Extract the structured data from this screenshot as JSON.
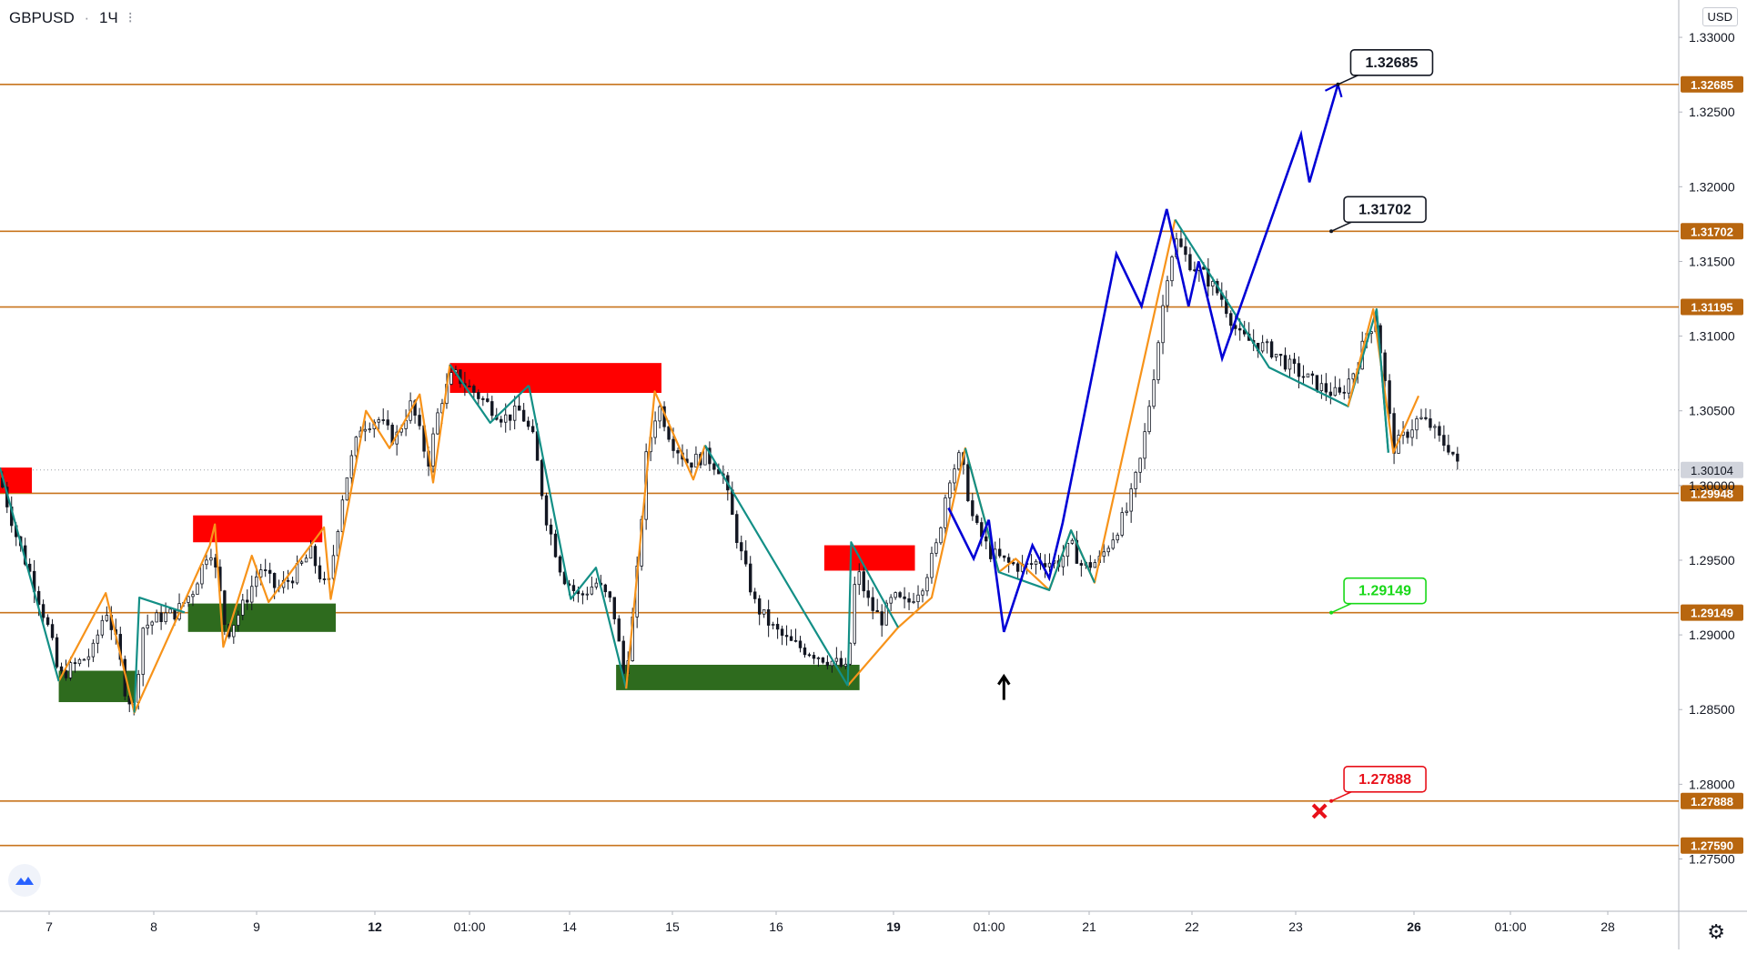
{
  "header": {
    "symbol": "GBPUSD",
    "interval": "1Ч",
    "currency": "USD"
  },
  "colors": {
    "up": "#131722",
    "down": "#131722",
    "level_line": "#c8741d",
    "level_tag": "#b8660f",
    "zig_orange": "#f7931a",
    "zig_teal": "#138f86",
    "projection": "#0000d6",
    "supply": "#ff0000",
    "demand": "#2e6b1e",
    "callout_green": "#18d818",
    "callout_red": "#e8101a",
    "current_price_tag": "#d1d4dc"
  },
  "icons": {
    "logo": "tradingview-cloud-icon",
    "settings": "gear-icon",
    "marker_up": "arrow-up-icon",
    "marker_stop": "cross-icon"
  },
  "chart_data": {
    "type": "candlestick",
    "symbol": "GBPUSD",
    "interval": "1Ч",
    "xlabel": "",
    "ylabel": "",
    "ylim": [
      1.2715,
      1.3325
    ],
    "y_ticks": [
      "1.27500",
      "1.28000",
      "1.28500",
      "1.29000",
      "1.29500",
      "1.30000",
      "1.30500",
      "1.31000",
      "1.31500",
      "1.32000",
      "1.32500",
      "1.33000"
    ],
    "x_ticks": [
      "7",
      "8",
      "9",
      "12",
      "01:00",
      "14",
      "15",
      "16",
      "19",
      "01:00",
      "21",
      "22",
      "23",
      "26",
      "01:00",
      "28"
    ],
    "current_price": "1.30104",
    "levels": [
      {
        "label": "1.32685",
        "value": 1.32685
      },
      {
        "label": "1.31702",
        "value": 1.31702
      },
      {
        "label": "1.31195",
        "value": 1.31195
      },
      {
        "label": "1.29948",
        "value": 1.29948
      },
      {
        "label": "1.29149",
        "value": 1.29149
      },
      {
        "label": "1.27888",
        "value": 1.27888
      },
      {
        "label": "1.27590",
        "value": 1.2759
      }
    ],
    "callouts": [
      {
        "label": "1.32685",
        "style": "black",
        "value": 1.32685,
        "t": 0.797
      },
      {
        "label": "1.31702",
        "style": "black",
        "value": 1.31702,
        "t": 0.793
      },
      {
        "label": "1.29149",
        "style": "green",
        "value": 1.29149,
        "t": 0.793
      },
      {
        "label": "1.27888",
        "style": "red",
        "value": 1.27888,
        "t": 0.793
      }
    ],
    "zones": [
      {
        "type": "supply",
        "t0": 0.0,
        "t1": 0.019,
        "top": 1.3012,
        "bottom": 1.2995
      },
      {
        "type": "supply",
        "t0": 0.115,
        "t1": 0.192,
        "top": 1.298,
        "bottom": 1.2962
      },
      {
        "type": "supply",
        "t0": 0.268,
        "t1": 0.394,
        "top": 1.3082,
        "bottom": 1.3062
      },
      {
        "type": "supply",
        "t0": 0.491,
        "t1": 0.545,
        "top": 1.296,
        "bottom": 1.2943
      },
      {
        "type": "demand",
        "t0": 0.035,
        "t1": 0.081,
        "top": 1.2876,
        "bottom": 1.2855
      },
      {
        "type": "demand",
        "t0": 0.112,
        "t1": 0.2,
        "top": 1.2921,
        "bottom": 1.2902
      },
      {
        "type": "demand",
        "t0": 0.367,
        "t1": 0.512,
        "top": 1.288,
        "bottom": 1.2863
      }
    ],
    "projection_path": [
      [
        0.565,
        1.2985
      ],
      [
        0.58,
        1.2951
      ],
      [
        0.589,
        1.2977
      ],
      [
        0.598,
        1.2902
      ],
      [
        0.615,
        1.296
      ],
      [
        0.625,
        1.2938
      ],
      [
        0.633,
        1.2975
      ],
      [
        0.665,
        1.3155
      ],
      [
        0.68,
        1.312
      ],
      [
        0.695,
        1.3185
      ],
      [
        0.708,
        1.312
      ],
      [
        0.714,
        1.315
      ],
      [
        0.728,
        1.3085
      ],
      [
        0.775,
        1.3235
      ],
      [
        0.78,
        1.3203
      ],
      [
        0.797,
        1.32685
      ]
    ],
    "zigzag": [
      {
        "color": "orange",
        "points": [
          [
            0.035,
            1.2869
          ],
          [
            0.063,
            1.2928
          ],
          [
            0.08,
            1.2848
          ],
          [
            0.125,
            1.296
          ],
          [
            0.128,
            1.2974
          ],
          [
            0.133,
            1.2892
          ],
          [
            0.15,
            1.2953
          ],
          [
            0.16,
            1.2922
          ],
          [
            0.193,
            1.2972
          ],
          [
            0.197,
            1.2924
          ],
          [
            0.218,
            1.305
          ],
          [
            0.232,
            1.3025
          ],
          [
            0.25,
            1.3061
          ],
          [
            0.258,
            1.3002
          ],
          [
            0.268,
            1.3081
          ]
        ]
      },
      {
        "color": "teal",
        "points": [
          [
            0.0,
            1.3012
          ],
          [
            0.035,
            1.2869
          ]
        ]
      },
      {
        "color": "teal",
        "points": [
          [
            0.08,
            1.2848
          ],
          [
            0.083,
            1.2925
          ],
          [
            0.11,
            1.2915
          ]
        ]
      },
      {
        "color": "teal",
        "points": [
          [
            0.268,
            1.3081
          ],
          [
            0.292,
            1.3042
          ],
          [
            0.315,
            1.3067
          ]
        ]
      },
      {
        "color": "teal",
        "points": [
          [
            0.315,
            1.3067
          ],
          [
            0.34,
            1.2924
          ],
          [
            0.355,
            1.2945
          ],
          [
            0.373,
            1.2864
          ]
        ]
      },
      {
        "color": "orange",
        "points": [
          [
            0.373,
            1.2864
          ],
          [
            0.39,
            1.3063
          ],
          [
            0.413,
            1.3004
          ],
          [
            0.42,
            1.3027
          ]
        ]
      },
      {
        "color": "teal",
        "points": [
          [
            0.42,
            1.3027
          ],
          [
            0.505,
            1.2866
          ]
        ]
      },
      {
        "color": "orange",
        "points": [
          [
            0.505,
            1.2866
          ],
          [
            0.535,
            1.2905
          ],
          [
            0.555,
            1.2925
          ],
          [
            0.575,
            1.3025
          ],
          [
            0.595,
            1.2942
          ],
          [
            0.605,
            1.2951
          ],
          [
            0.625,
            1.293
          ],
          [
            0.638,
            1.297
          ],
          [
            0.652,
            1.2935
          ],
          [
            0.7,
            1.3178
          ]
        ]
      },
      {
        "color": "teal",
        "points": [
          [
            0.505,
            1.2866
          ],
          [
            0.507,
            1.2962
          ],
          [
            0.535,
            1.2905
          ]
        ]
      },
      {
        "color": "teal",
        "points": [
          [
            0.575,
            1.3025
          ],
          [
            0.595,
            1.2942
          ],
          [
            0.625,
            1.293
          ],
          [
            0.638,
            1.297
          ],
          [
            0.652,
            1.2935
          ]
        ]
      },
      {
        "color": "teal",
        "points": [
          [
            0.7,
            1.3178
          ],
          [
            0.756,
            1.3079
          ],
          [
            0.803,
            1.3053
          ],
          [
            0.82,
            1.3118
          ],
          [
            0.827,
            1.3022
          ]
        ]
      },
      {
        "color": "orange",
        "points": [
          [
            0.803,
            1.3053
          ],
          [
            0.818,
            1.3118
          ],
          [
            0.83,
            1.3022
          ],
          [
            0.845,
            1.306
          ]
        ]
      },
      {
        "color": "teal",
        "points": [
          [
            0.82,
            1.3118
          ],
          [
            0.827,
            1.3022
          ]
        ]
      }
    ],
    "markers": [
      {
        "type": "arrow-up",
        "t": 0.598,
        "value": 1.2865
      },
      {
        "type": "cross",
        "t": 0.786,
        "value": 1.2782
      }
    ],
    "price_path": [
      [
        0.0,
        1.3005
      ],
      [
        0.01,
        1.2965
      ],
      [
        0.02,
        1.2935
      ],
      [
        0.03,
        1.29
      ],
      [
        0.035,
        1.2872
      ],
      [
        0.045,
        1.288
      ],
      [
        0.055,
        1.2888
      ],
      [
        0.063,
        1.2918
      ],
      [
        0.07,
        1.2892
      ],
      [
        0.075,
        1.286
      ],
      [
        0.08,
        1.2852
      ],
      [
        0.085,
        1.2905
      ],
      [
        0.095,
        1.2912
      ],
      [
        0.105,
        1.2915
      ],
      [
        0.115,
        1.293
      ],
      [
        0.125,
        1.296
      ],
      [
        0.13,
        1.2935
      ],
      [
        0.135,
        1.29
      ],
      [
        0.145,
        1.292
      ],
      [
        0.155,
        1.2945
      ],
      [
        0.165,
        1.293
      ],
      [
        0.175,
        1.294
      ],
      [
        0.185,
        1.2955
      ],
      [
        0.195,
        1.2928
      ],
      [
        0.205,
        1.3
      ],
      [
        0.215,
        1.304
      ],
      [
        0.225,
        1.3045
      ],
      [
        0.235,
        1.303
      ],
      [
        0.245,
        1.3055
      ],
      [
        0.255,
        1.3015
      ],
      [
        0.262,
        1.3055
      ],
      [
        0.27,
        1.3075
      ],
      [
        0.28,
        1.3065
      ],
      [
        0.29,
        1.3055
      ],
      [
        0.3,
        1.3045
      ],
      [
        0.31,
        1.305
      ],
      [
        0.318,
        1.303
      ],
      [
        0.325,
        1.298
      ],
      [
        0.335,
        1.294
      ],
      [
        0.345,
        1.2925
      ],
      [
        0.355,
        1.2935
      ],
      [
        0.365,
        1.292
      ],
      [
        0.372,
        1.287
      ],
      [
        0.378,
        1.292
      ],
      [
        0.385,
        1.302
      ],
      [
        0.392,
        1.3055
      ],
      [
        0.4,
        1.303
      ],
      [
        0.41,
        1.3015
      ],
      [
        0.42,
        1.302
      ],
      [
        0.43,
        1.301
      ],
      [
        0.44,
        1.296
      ],
      [
        0.45,
        1.292
      ],
      [
        0.46,
        1.2905
      ],
      [
        0.47,
        1.2895
      ],
      [
        0.48,
        1.289
      ],
      [
        0.49,
        1.2885
      ],
      [
        0.5,
        1.288
      ],
      [
        0.505,
        1.2875
      ],
      [
        0.51,
        1.2945
      ],
      [
        0.518,
        1.292
      ],
      [
        0.525,
        1.291
      ],
      [
        0.532,
        1.2925
      ],
      [
        0.54,
        1.292
      ],
      [
        0.55,
        1.2935
      ],
      [
        0.558,
        1.296
      ],
      [
        0.565,
        1.3005
      ],
      [
        0.572,
        1.302
      ],
      [
        0.58,
        1.2975
      ],
      [
        0.59,
        1.2955
      ],
      [
        0.6,
        1.2948
      ],
      [
        0.61,
        1.2945
      ],
      [
        0.62,
        1.295
      ],
      [
        0.63,
        1.2948
      ],
      [
        0.638,
        1.296
      ],
      [
        0.645,
        1.2945
      ],
      [
        0.655,
        1.295
      ],
      [
        0.665,
        1.297
      ],
      [
        0.672,
        1.2985
      ],
      [
        0.68,
        1.302
      ],
      [
        0.688,
        1.308
      ],
      [
        0.695,
        1.314
      ],
      [
        0.7,
        1.3165
      ],
      [
        0.708,
        1.315
      ],
      [
        0.718,
        1.314
      ],
      [
        0.728,
        1.3125
      ],
      [
        0.738,
        1.31
      ],
      [
        0.748,
        1.3095
      ],
      [
        0.758,
        1.309
      ],
      [
        0.768,
        1.308
      ],
      [
        0.778,
        1.3072
      ],
      [
        0.788,
        1.3065
      ],
      [
        0.798,
        1.306
      ],
      [
        0.808,
        1.308
      ],
      [
        0.815,
        1.3105
      ],
      [
        0.82,
        1.311
      ],
      [
        0.826,
        1.306
      ],
      [
        0.83,
        1.3025
      ],
      [
        0.838,
        1.3035
      ],
      [
        0.845,
        1.3045
      ],
      [
        0.852,
        1.304
      ],
      [
        0.858,
        1.303
      ],
      [
        0.864,
        1.3025
      ],
      [
        0.868,
        1.3015
      ],
      [
        0.87,
        1.2995
      ]
    ]
  }
}
